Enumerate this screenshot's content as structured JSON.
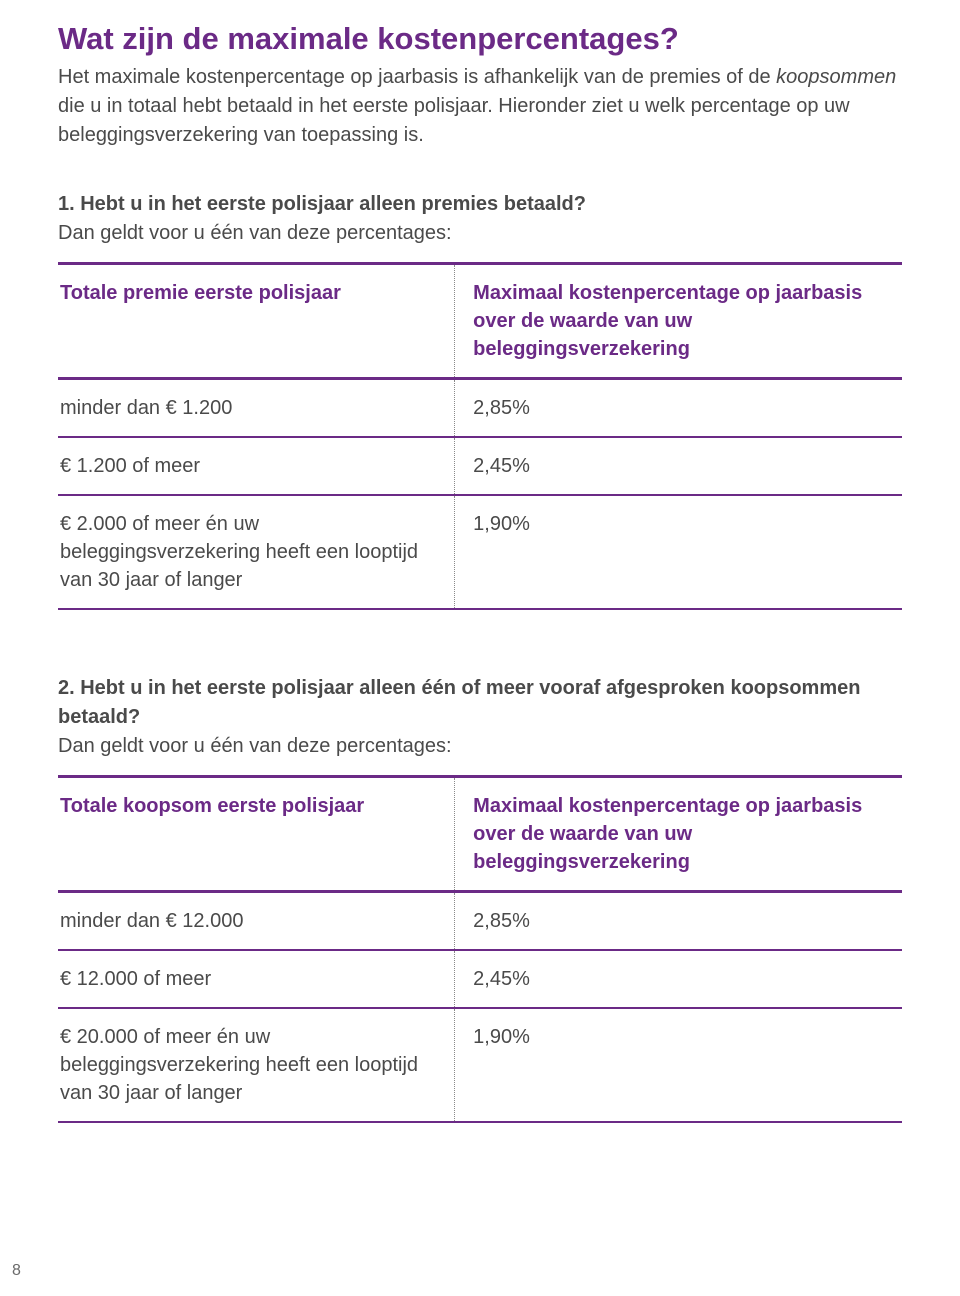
{
  "colors": {
    "accent": "#6b2a86",
    "text": "#4a4a4a",
    "background": "#ffffff",
    "dotted_divider": "#8a8a8a"
  },
  "typography": {
    "title_fontsize": 31,
    "body_fontsize": 20,
    "page_number_fontsize": 16,
    "title_weight": 700,
    "body_weight": 400
  },
  "title": "Wat zijn de maximale kostenpercentages?",
  "intro_part1": "Het maximale kostenpercentage op jaarbasis is afhankelijk van de premies of de ",
  "intro_italic": "koopsommen",
  "intro_part2": " die u in totaal hebt betaald in het eerste polisjaar. Hieronder ziet u welk percentage op uw beleggingsverzekering van toepassing is.",
  "section1": {
    "heading": "1. Hebt u in het eerste polisjaar alleen premies betaald?",
    "sub": "Dan geldt voor u één van deze percentages:",
    "columns": [
      "Totale premie eerste polisjaar",
      "Maximaal kostenpercentage op jaarbasis over de waarde van uw beleggingsverzekering"
    ],
    "rows": [
      {
        "left": "minder dan € 1.200",
        "right": "2,85%"
      },
      {
        "left": "€ 1.200 of meer",
        "right": "2,45%"
      },
      {
        "left": "€ 2.000 of meer én uw beleggingsverzekering heeft een looptijd van 30 jaar of langer",
        "right": "1,90%"
      }
    ]
  },
  "section2": {
    "heading": "2. Hebt u in het eerste polisjaar alleen één of meer vooraf afgesproken koopsommen betaald?",
    "sub": "Dan geldt voor u één van deze percentages:",
    "columns": [
      "Totale koopsom eerste polisjaar",
      "Maximaal kostenpercentage op jaarbasis over de waarde van uw beleggingsverzekering"
    ],
    "rows": [
      {
        "left": "minder dan € 12.000",
        "right": "2,85%"
      },
      {
        "left": "€ 12.000 of meer",
        "right": "2,45%"
      },
      {
        "left": "€ 20.000 of meer én uw beleggingsverzekering heeft een looptijd van 30 jaar of langer",
        "right": "1,90%"
      }
    ]
  },
  "page_number": "8"
}
